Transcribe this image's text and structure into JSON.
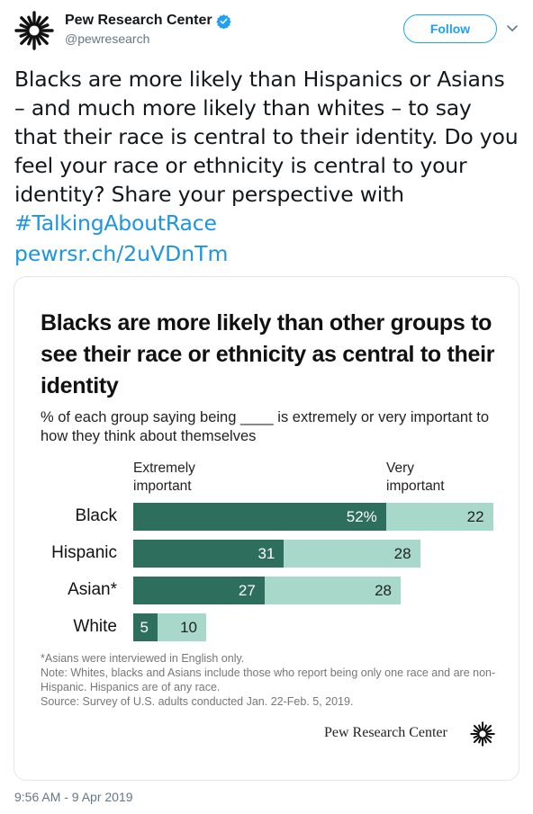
{
  "account": {
    "display_name": "Pew Research Center",
    "handle": "@pewresearch",
    "verified_icon": "verified-badge-icon",
    "avatar_icon": "pew-starburst-logo"
  },
  "follow_button": {
    "label": "Follow"
  },
  "tweet": {
    "text": "Blacks are more likely than Hispanics or Asians – and much more likely than whites – to say that their race is central to their identity. Do you feel your race or ethnicity is central to your identity? Share your perspective with ",
    "hashtag": "#TalkingAboutRace",
    "short_link": "pewrsr.ch/2uVDnTm",
    "timestamp": "9:56 AM - 9 Apr 2019"
  },
  "card": {
    "brand": "Pew Research Center",
    "notes": [
      "*Asians were interviewed in English only.",
      "Note: Whites, blacks and Asians include those who report being only one race and are non-Hispanic. Hispanics are of any race.",
      "Source: Survey of U.S. adults conducted Jan. 22-Feb. 5, 2019."
    ]
  },
  "chart_data": {
    "type": "bar",
    "stacked": true,
    "orientation": "horizontal",
    "title": "Blacks are more likely than other groups to see their race or ethnicity as central to their identity",
    "subtitle": "% of each group saying being ____ is extremely or very important to how they think about themselves",
    "categories": [
      "Black",
      "Hispanic",
      "Asian*",
      "White"
    ],
    "series": [
      {
        "name": "Extremely important",
        "values": [
          52,
          31,
          27,
          5
        ],
        "labels": [
          "52%",
          "31",
          "27",
          "5"
        ],
        "color": "#2e6e5d"
      },
      {
        "name": "Very important",
        "values": [
          22,
          28,
          28,
          10
        ],
        "labels": [
          "22",
          "28",
          "28",
          "10"
        ],
        "color": "#a8d8ca"
      }
    ],
    "col_headers": [
      "Extremely important",
      "Very important"
    ],
    "xlim": [
      0,
      74
    ],
    "grid": false,
    "legend": "column headers above bars"
  },
  "colors": {
    "accent": "#1da1f2",
    "link": "#1b95e0",
    "dark_bar": "#2e6e5d",
    "light_bar": "#a8d8ca"
  }
}
